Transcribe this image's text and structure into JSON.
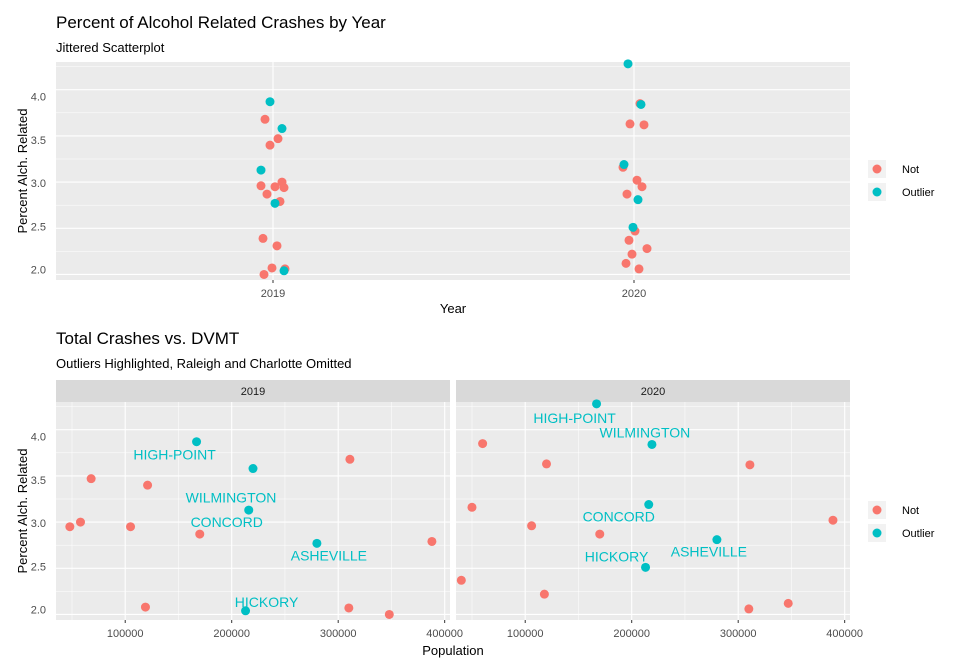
{
  "colors": {
    "not": "#F8766D",
    "outlier": "#00BFC4",
    "panel_bg": "#EBEBEB",
    "strip_bg": "#D9D9D9",
    "grid": "#FFFFFF"
  },
  "top_chart": {
    "title": "Percent of Alcohol Related Crashes by Year",
    "subtitle": "Jittered Scatterplot",
    "xlabel": "Year",
    "ylabel": "Percent Alch. Related",
    "x_ticks": [
      "2019",
      "2020"
    ],
    "y_ticks": [
      "2.0",
      "2.5",
      "3.0",
      "3.5",
      "4.0"
    ],
    "legend": {
      "title": "",
      "items": [
        "Not",
        "Outlier"
      ]
    }
  },
  "bottom_chart": {
    "title": "Total Crashes vs. DVMT",
    "subtitle": "Outliers Highlighted, Raleigh and Charlotte Omitted",
    "xlabel": "Population",
    "ylabel": "Percent Alch. Related",
    "x_ticks": [
      "100000",
      "200000",
      "300000",
      "400000"
    ],
    "y_ticks": [
      "2.0",
      "2.5",
      "3.0",
      "3.5",
      "4.0"
    ],
    "facets": [
      "2019",
      "2020"
    ],
    "legend": {
      "title": "",
      "items": [
        "Not",
        "Outlier"
      ]
    }
  },
  "chart_data": [
    {
      "type": "scatter",
      "title": "Percent of Alcohol Related Crashes by Year",
      "subtitle": "Jittered Scatterplot",
      "xlabel": "Year",
      "ylabel": "Percent Alch. Related",
      "categories": [
        "2019",
        "2020"
      ],
      "ylim": [
        1.94,
        4.3
      ],
      "grid": true,
      "legend_position": "right",
      "series": [
        {
          "name": "Not",
          "points": [
            {
              "x": 2019,
              "y": 3.68
            },
            {
              "x": 2019,
              "y": 3.47
            },
            {
              "x": 2019,
              "y": 3.4
            },
            {
              "x": 2019,
              "y": 3.0
            },
            {
              "x": 2019,
              "y": 2.96
            },
            {
              "x": 2019,
              "y": 2.95
            },
            {
              "x": 2019,
              "y": 2.94
            },
            {
              "x": 2019,
              "y": 2.87
            },
            {
              "x": 2019,
              "y": 2.79
            },
            {
              "x": 2019,
              "y": 2.39
            },
            {
              "x": 2019,
              "y": 2.31
            },
            {
              "x": 2019,
              "y": 2.07
            },
            {
              "x": 2019,
              "y": 2.06
            },
            {
              "x": 2019,
              "y": 2.0
            },
            {
              "x": 2020,
              "y": 3.85
            },
            {
              "x": 2020,
              "y": 3.63
            },
            {
              "x": 2020,
              "y": 3.62
            },
            {
              "x": 2020,
              "y": 3.16
            },
            {
              "x": 2020,
              "y": 3.02
            },
            {
              "x": 2020,
              "y": 2.95
            },
            {
              "x": 2020,
              "y": 2.87
            },
            {
              "x": 2020,
              "y": 2.47
            },
            {
              "x": 2020,
              "y": 2.37
            },
            {
              "x": 2020,
              "y": 2.28
            },
            {
              "x": 2020,
              "y": 2.22
            },
            {
              "x": 2020,
              "y": 2.12
            },
            {
              "x": 2020,
              "y": 2.06
            }
          ]
        },
        {
          "name": "Outlier",
          "points": [
            {
              "x": 2019,
              "y": 3.87
            },
            {
              "x": 2019,
              "y": 3.58
            },
            {
              "x": 2019,
              "y": 3.13
            },
            {
              "x": 2019,
              "y": 2.77
            },
            {
              "x": 2019,
              "y": 2.04
            },
            {
              "x": 2020,
              "y": 4.28
            },
            {
              "x": 2020,
              "y": 3.84
            },
            {
              "x": 2020,
              "y": 3.19
            },
            {
              "x": 2020,
              "y": 2.81
            },
            {
              "x": 2020,
              "y": 2.51
            }
          ]
        }
      ]
    },
    {
      "type": "scatter",
      "title": "Total Crashes vs. DVMT",
      "subtitle": "Outliers Highlighted, Raleigh and Charlotte Omitted",
      "xlabel": "Population",
      "ylabel": "Percent Alch. Related",
      "xlim": [
        35000,
        405000
      ],
      "ylim": [
        1.94,
        4.3
      ],
      "grid": true,
      "legend_position": "right",
      "facets": [
        {
          "label": "2019",
          "series": [
            {
              "name": "Not",
              "points": [
                {
                  "x": 48000,
                  "y": 2.95
                },
                {
                  "x": 58000,
                  "y": 3.0
                },
                {
                  "x": 68000,
                  "y": 3.47
                },
                {
                  "x": 105000,
                  "y": 2.95
                },
                {
                  "x": 119000,
                  "y": 2.08
                },
                {
                  "x": 121000,
                  "y": 3.4
                },
                {
                  "x": 170000,
                  "y": 2.87
                },
                {
                  "x": 310000,
                  "y": 2.07
                },
                {
                  "x": 311000,
                  "y": 3.68
                },
                {
                  "x": 348000,
                  "y": 2.0
                },
                {
                  "x": 388000,
                  "y": 2.79
                }
              ]
            },
            {
              "name": "Outlier",
              "points": [
                {
                  "x": 167000,
                  "y": 3.87,
                  "label": "HIGH-POINT"
                },
                {
                  "x": 220000,
                  "y": 3.58,
                  "label": "WILMINGTON"
                },
                {
                  "x": 216000,
                  "y": 3.13,
                  "label": "CONCORD"
                },
                {
                  "x": 280000,
                  "y": 2.77,
                  "label": "ASHEVILLE"
                },
                {
                  "x": 213000,
                  "y": 2.04,
                  "label": "HICKORY"
                }
              ]
            }
          ]
        },
        {
          "label": "2020",
          "series": [
            {
              "name": "Not",
              "points": [
                {
                  "x": 40000,
                  "y": 2.37
                },
                {
                  "x": 50000,
                  "y": 3.16
                },
                {
                  "x": 60000,
                  "y": 3.85
                },
                {
                  "x": 106000,
                  "y": 2.96
                },
                {
                  "x": 118000,
                  "y": 2.22
                },
                {
                  "x": 120000,
                  "y": 3.63
                },
                {
                  "x": 170000,
                  "y": 2.87
                },
                {
                  "x": 310000,
                  "y": 2.06
                },
                {
                  "x": 311000,
                  "y": 3.62
                },
                {
                  "x": 347000,
                  "y": 2.12
                },
                {
                  "x": 389000,
                  "y": 3.02
                }
              ]
            },
            {
              "name": "Outlier",
              "points": [
                {
                  "x": 167000,
                  "y": 4.28,
                  "label": "HIGH-POINT"
                },
                {
                  "x": 219000,
                  "y": 3.84,
                  "label": "WILMINGTON"
                },
                {
                  "x": 216000,
                  "y": 3.19,
                  "label": "CONCORD"
                },
                {
                  "x": 280000,
                  "y": 2.81,
                  "label": "ASHEVILLE"
                },
                {
                  "x": 213000,
                  "y": 2.51,
                  "label": "HICKORY"
                }
              ]
            }
          ]
        }
      ]
    }
  ]
}
